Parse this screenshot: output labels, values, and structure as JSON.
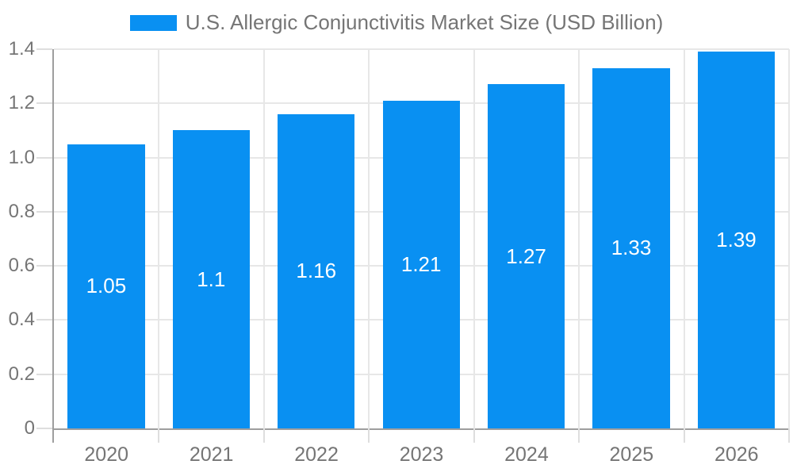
{
  "legend": {
    "label": "U.S. Allergic Conjunctivitis Market Size (USD Billion)"
  },
  "chart_data": {
    "type": "bar",
    "title": "U.S. Allergic Conjunctivitis Market Size (USD Billion)",
    "categories": [
      "2020",
      "2021",
      "2022",
      "2023",
      "2024",
      "2025",
      "2026"
    ],
    "values": [
      1.05,
      1.1,
      1.16,
      1.21,
      1.27,
      1.33,
      1.39
    ],
    "bar_labels": [
      "1.05",
      "1.1",
      "1.16",
      "1.21",
      "1.27",
      "1.33",
      "1.39"
    ],
    "series": [
      {
        "name": "U.S. Allergic Conjunctivitis Market Size (USD Billion)",
        "values": [
          1.05,
          1.1,
          1.16,
          1.21,
          1.27,
          1.33,
          1.39
        ]
      }
    ],
    "xlabel": "",
    "ylabel": "",
    "ylim": [
      0,
      1.4
    ],
    "ytick_labels": [
      "0",
      "0.2",
      "0.4",
      "0.6",
      "0.8",
      "1.0",
      "1.2",
      "1.4"
    ],
    "grid": true,
    "legend_position": "top",
    "colors": {
      "bar": "#0990f2",
      "bar_label": "#ffffff",
      "text": "#757575",
      "axis_line": "#9e9e9e",
      "grid_line": "#e7e7e7",
      "tick_line": "#dedede",
      "background": "#ffffff"
    }
  }
}
